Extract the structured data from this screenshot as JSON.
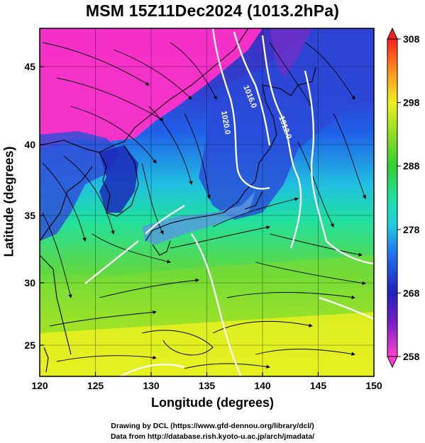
{
  "title": "MSM 15Z11Dec2024 (1013.2hPa)",
  "axes": {
    "xlabel": "Longitude (degrees)",
    "ylabel": "Latitude  (degrees)",
    "xticks": [
      "120",
      "125",
      "130",
      "135",
      "140",
      "145",
      "150"
    ],
    "yticks": [
      "25",
      "30",
      "35",
      "40",
      "45"
    ],
    "xlim": [
      120,
      150
    ],
    "ylim": [
      22.4,
      47.6
    ]
  },
  "colorbar": {
    "ticks": [
      "308",
      "298",
      "288",
      "278",
      "268",
      "258"
    ],
    "range": [
      258,
      308
    ]
  },
  "contours": {
    "labels": [
      "1016.0",
      "1020.0",
      "1012.0"
    ]
  },
  "credits": {
    "line1": "Drawing by DCL (https://www.gfd-dennou.org/library/dcl/)",
    "line2": "Data from http://database.rish.kyoto-u.ac.jp/arch/jmadata/"
  }
}
